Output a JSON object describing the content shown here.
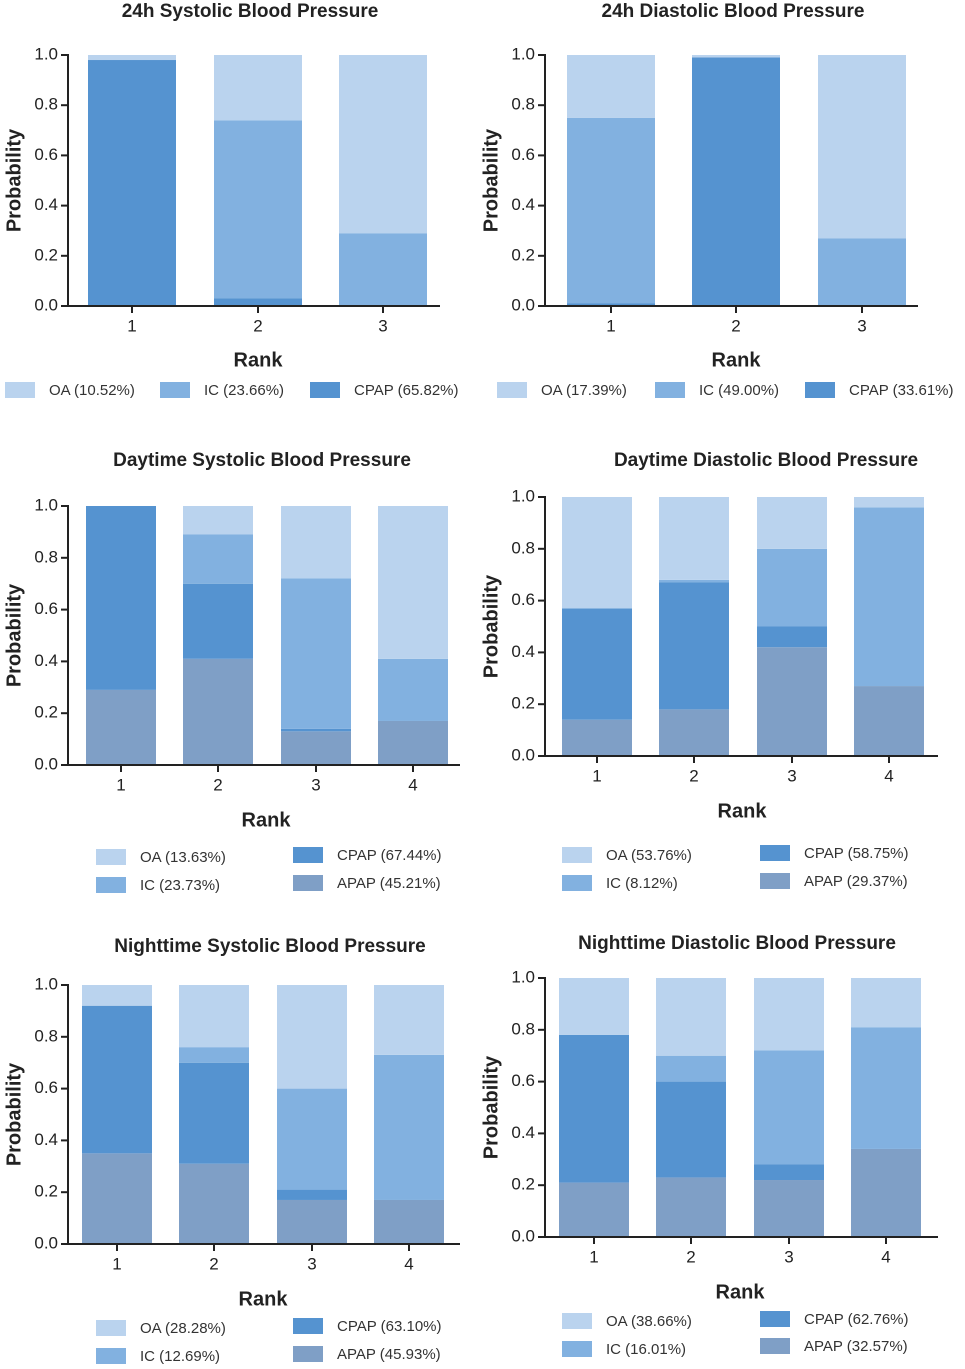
{
  "chart_data": [
    {
      "type": "bar",
      "stacked": true,
      "title": "24h Systolic Blood Pressure",
      "x_label": "Rank",
      "y_label": "Probability",
      "categories": [
        "1",
        "2",
        "3"
      ],
      "series": [
        {
          "name": "OA (10.52%)",
          "color": "#bad3ee",
          "values": [
            0.02,
            0.26,
            0.71
          ]
        },
        {
          "name": "IC (23.66%)",
          "color": "#82b1e0",
          "values": [
            0,
            0.71,
            0.29
          ]
        },
        {
          "name": "CPAP (65.82%)",
          "color": "#5593d0",
          "values": [
            0.98,
            0.03,
            0
          ]
        }
      ],
      "ylim": [
        0,
        1
      ],
      "yticks": [
        {
          "value": 0,
          "label": "0.0"
        },
        0.2,
        0.4,
        0.6,
        0.8,
        {
          "value": 1,
          "label": "1.0"
        }
      ]
    },
    {
      "type": "bar",
      "stacked": true,
      "title": "24h Diastolic Blood Pressure",
      "x_label": "Rank",
      "y_label": "Probability",
      "categories": [
        "1",
        "2",
        "3"
      ],
      "series": [
        {
          "name": "OA (17.39%)",
          "color": "#bad3ee",
          "values": [
            0.25,
            0.01,
            0.73
          ]
        },
        {
          "name": "IC (49.00%)",
          "color": "#82b1e0",
          "values": [
            0.74,
            0,
            0.27
          ]
        },
        {
          "name": "CPAP (33.61%)",
          "color": "#5593d0",
          "values": [
            0.01,
            0.99,
            0
          ]
        }
      ],
      "ylim": [
        0,
        1
      ],
      "yticks": [
        {
          "value": 0,
          "label": "0.0"
        },
        0.2,
        0.4,
        0.6,
        0.8,
        {
          "value": 1,
          "label": "1.0"
        }
      ]
    },
    {
      "type": "bar",
      "stacked": true,
      "title": "Daytime Systolic Blood Pressure",
      "x_label": "Rank",
      "y_label": "Probability",
      "categories": [
        "1",
        "2",
        "3",
        "4"
      ],
      "series": [
        {
          "name": "OA (13.63%)",
          "color": "#bad3ee",
          "values": [
            0,
            0.11,
            0.28,
            0.59
          ]
        },
        {
          "name": "IC (23.73%)",
          "color": "#82b1e0",
          "values": [
            0,
            0.19,
            0.58,
            0.24
          ]
        },
        {
          "name": "CPAP (67.44%)",
          "color": "#5593d0",
          "values": [
            0.71,
            0.29,
            0.01,
            0
          ]
        },
        {
          "name": "APAP (45.21%)",
          "color": "#7f9fc6",
          "values": [
            0.29,
            0.41,
            0.13,
            0.17
          ]
        }
      ],
      "ylim": [
        0,
        1
      ],
      "yticks": [
        {
          "value": 0,
          "label": "0.0"
        },
        0.2,
        0.4,
        0.6,
        0.8,
        {
          "value": 1,
          "label": "1.0"
        }
      ]
    },
    {
      "type": "bar",
      "stacked": true,
      "title": "Daytime Diastolic Blood Pressure",
      "x_label": "Rank",
      "y_label": "Probability",
      "categories": [
        "1",
        "2",
        "3",
        "4"
      ],
      "series": [
        {
          "name": "OA (53.76%)",
          "color": "#bad3ee",
          "values": [
            0.43,
            0.32,
            0.2,
            0.04
          ]
        },
        {
          "name": "IC (8.12%)",
          "color": "#82b1e0",
          "values": [
            0,
            0.01,
            0.3,
            0.69
          ]
        },
        {
          "name": "CPAP (58.75%)",
          "color": "#5593d0",
          "values": [
            0.43,
            0.49,
            0.08,
            0
          ]
        },
        {
          "name": "APAP (29.37%)",
          "color": "#7f9fc6",
          "values": [
            0.14,
            0.18,
            0.42,
            0.27
          ]
        }
      ],
      "ylim": [
        0,
        1
      ],
      "yticks": [
        {
          "value": 0,
          "label": "0.0"
        },
        0.2,
        0.4,
        0.6,
        0.8,
        {
          "value": 1,
          "label": "1.0"
        }
      ]
    },
    {
      "type": "bar",
      "stacked": true,
      "title": "Nighttime Systolic Blood Pressure",
      "x_label": "Rank",
      "y_label": "Probability",
      "categories": [
        "1",
        "2",
        "3",
        "4"
      ],
      "series": [
        {
          "name": "OA (28.28%)",
          "color": "#bad3ee",
          "values": [
            0.08,
            0.24,
            0.4,
            0.27
          ]
        },
        {
          "name": "IC (12.69%)",
          "color": "#82b1e0",
          "values": [
            0,
            0.06,
            0.39,
            0.56
          ]
        },
        {
          "name": "CPAP (63.10%)",
          "color": "#5593d0",
          "values": [
            0.57,
            0.39,
            0.04,
            0
          ]
        },
        {
          "name": "APAP (45.93%)",
          "color": "#7f9fc6",
          "values": [
            0.35,
            0.31,
            0.17,
            0.17
          ]
        }
      ],
      "ylim": [
        0,
        1
      ],
      "yticks": [
        {
          "value": 0,
          "label": "0.0"
        },
        0.2,
        0.4,
        0.6,
        0.8,
        {
          "value": 1,
          "label": "1.0"
        }
      ]
    },
    {
      "type": "bar",
      "stacked": true,
      "title": "Nighttime Diastolic Blood Pressure",
      "x_label": "Rank",
      "y_label": "Probability",
      "categories": [
        "1",
        "2",
        "3",
        "4"
      ],
      "series": [
        {
          "name": "OA (38.66%)",
          "color": "#bad3ee",
          "values": [
            0.22,
            0.3,
            0.28,
            0.19
          ]
        },
        {
          "name": "IC (16.01%)",
          "color": "#82b1e0",
          "values": [
            0,
            0.1,
            0.44,
            0.47
          ]
        },
        {
          "name": "CPAP (62.76%)",
          "color": "#5593d0",
          "values": [
            0.57,
            0.37,
            0.06,
            0
          ]
        },
        {
          "name": "APAP (32.57%)",
          "color": "#7f9fc6",
          "values": [
            0.21,
            0.23,
            0.22,
            0.34
          ]
        }
      ],
      "ylim": [
        0,
        1
      ],
      "yticks": [
        {
          "value": 0,
          "label": "0.0"
        },
        0.2,
        0.4,
        0.6,
        0.8,
        {
          "value": 1,
          "label": "1.0"
        }
      ]
    }
  ]
}
